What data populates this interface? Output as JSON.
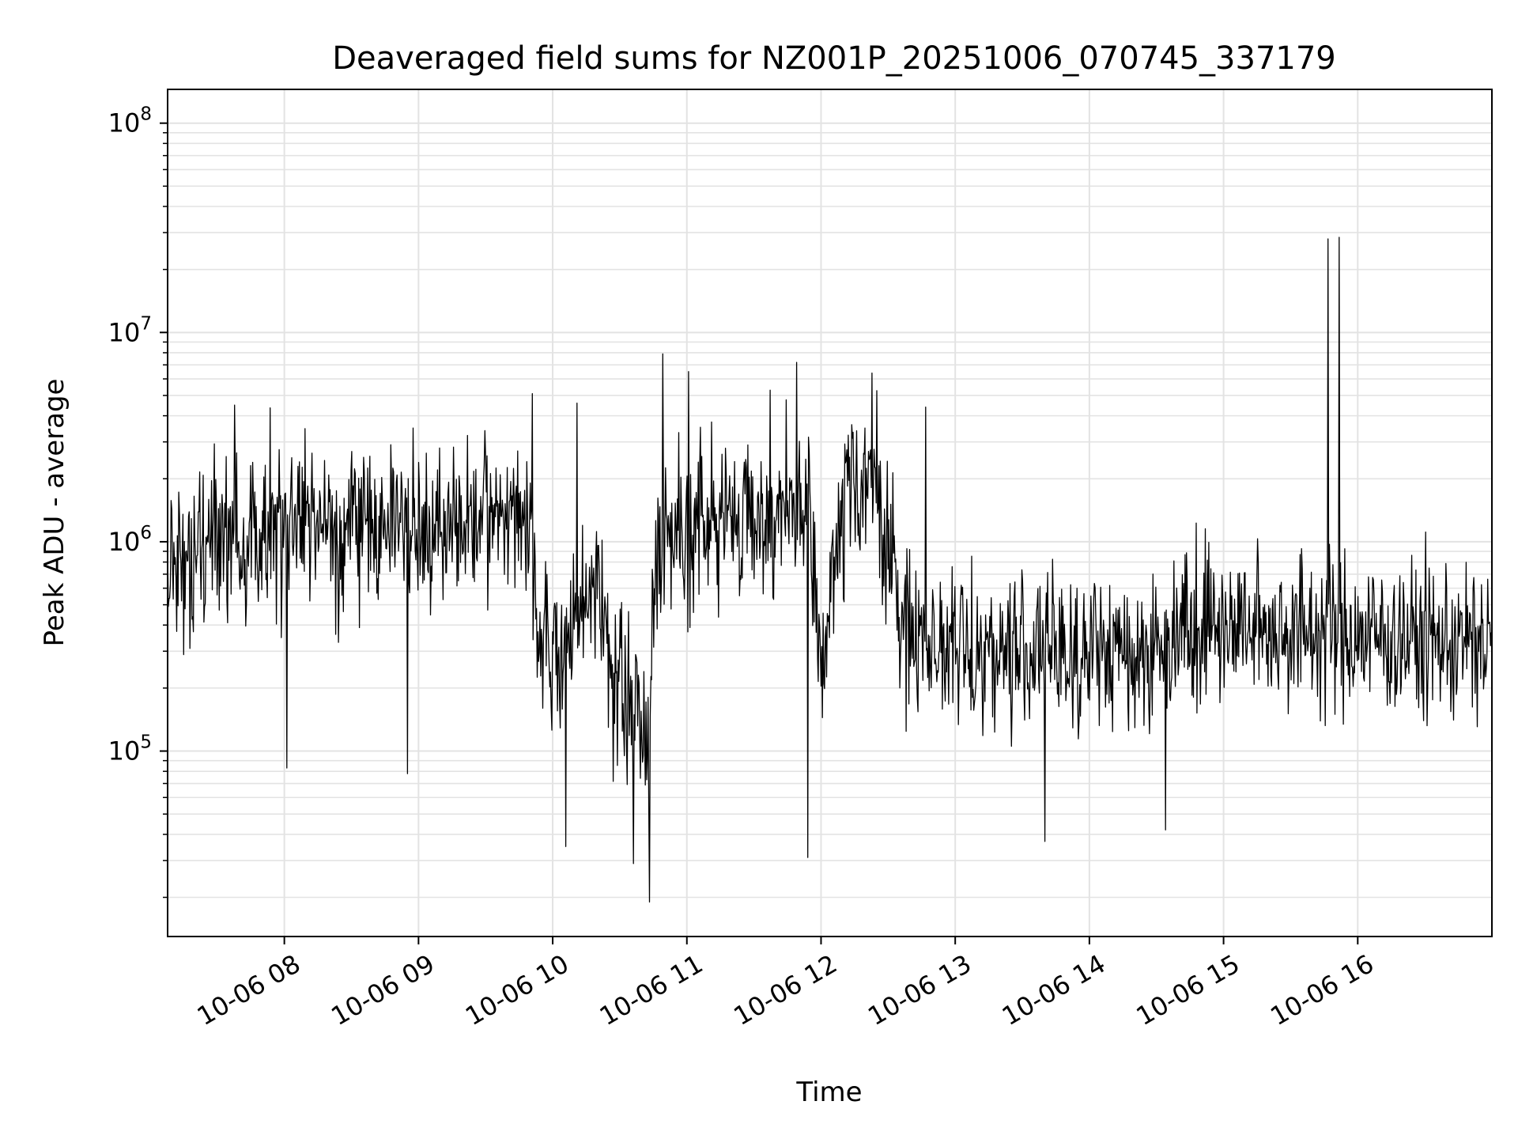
{
  "chart_data": {
    "type": "line",
    "title": "Deaveraged field sums for NZ001P_20251006_070745_337179",
    "xlabel": "Time",
    "ylabel": "Peak ADU - average",
    "yscale": "log",
    "xlim": [
      7.13,
      17.0
    ],
    "ylim": [
      13000,
      145000000
    ],
    "grid": true,
    "x_ticks": [
      {
        "value": 8,
        "label": "10-06 08"
      },
      {
        "value": 9,
        "label": "10-06 09"
      },
      {
        "value": 10,
        "label": "10-06 10"
      },
      {
        "value": 11,
        "label": "10-06 11"
      },
      {
        "value": 12,
        "label": "10-06 12"
      },
      {
        "value": 13,
        "label": "10-06 13"
      },
      {
        "value": 14,
        "label": "10-06 14"
      },
      {
        "value": 15,
        "label": "10-06 15"
      },
      {
        "value": 16,
        "label": "10-06 16"
      }
    ],
    "y_ticks": [
      {
        "value": 100000,
        "base": "10",
        "exp": "5"
      },
      {
        "value": 1000000,
        "base": "10",
        "exp": "6"
      },
      {
        "value": 10000000,
        "base": "10",
        "exp": "7"
      },
      {
        "value": 100000000,
        "base": "10",
        "exp": "8"
      }
    ],
    "series": [
      {
        "name": "Peak ADU - average",
        "color": "#000000",
        "x_start": 7.13,
        "x_end": 17.0,
        "n_points": 1900,
        "seed": 337179,
        "baseline": [
          {
            "x": 7.13,
            "y": 800000
          },
          {
            "x": 7.5,
            "y": 1100000
          },
          {
            "x": 8.5,
            "y": 1200000
          },
          {
            "x": 9.5,
            "y": 1200000
          },
          {
            "x": 9.8,
            "y": 1500000
          },
          {
            "x": 9.9,
            "y": 350000
          },
          {
            "x": 10.1,
            "y": 250000
          },
          {
            "x": 10.3,
            "y": 700000
          },
          {
            "x": 10.5,
            "y": 200000
          },
          {
            "x": 10.7,
            "y": 120000
          },
          {
            "x": 10.8,
            "y": 1200000
          },
          {
            "x": 11.5,
            "y": 1300000
          },
          {
            "x": 11.9,
            "y": 1400000
          },
          {
            "x": 12.0,
            "y": 250000
          },
          {
            "x": 12.2,
            "y": 2000000
          },
          {
            "x": 12.4,
            "y": 2000000
          },
          {
            "x": 12.6,
            "y": 400000
          },
          {
            "x": 13.0,
            "y": 300000
          },
          {
            "x": 14.6,
            "y": 300000
          },
          {
            "x": 14.65,
            "y": 450000
          },
          {
            "x": 15.0,
            "y": 400000
          },
          {
            "x": 17.0,
            "y": 320000
          }
        ],
        "spikes": [
          {
            "x": 7.63,
            "y": 4500000
          },
          {
            "x": 9.85,
            "y": 5100000
          },
          {
            "x": 10.18,
            "y": 4600000
          },
          {
            "x": 10.82,
            "y": 7900000
          },
          {
            "x": 11.01,
            "y": 6500000
          },
          {
            "x": 11.62,
            "y": 5300000
          },
          {
            "x": 11.82,
            "y": 7200000
          },
          {
            "x": 12.38,
            "y": 6400000
          },
          {
            "x": 12.78,
            "y": 4400000
          },
          {
            "x": 15.78,
            "y": 28000000
          },
          {
            "x": 15.86,
            "y": 28500000
          }
        ],
        "dips": [
          {
            "x": 8.02,
            "y": 83000
          },
          {
            "x": 8.92,
            "y": 78000
          },
          {
            "x": 10.1,
            "y": 35000
          },
          {
            "x": 10.6,
            "y": 29000
          },
          {
            "x": 10.72,
            "y": 19000
          },
          {
            "x": 11.9,
            "y": 31000
          },
          {
            "x": 13.67,
            "y": 37000
          },
          {
            "x": 14.57,
            "y": 42000
          }
        ]
      }
    ]
  }
}
